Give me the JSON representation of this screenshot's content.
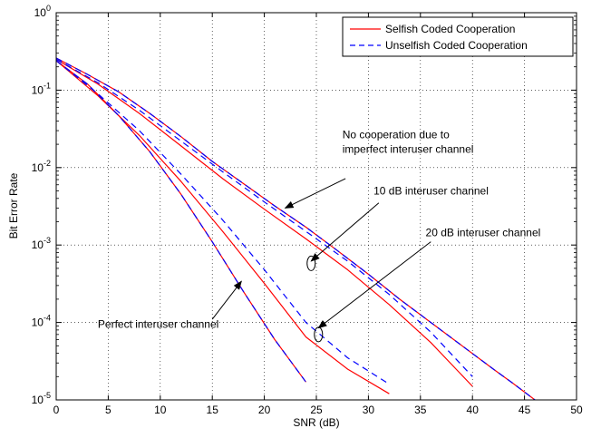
{
  "chart_data": {
    "type": "line",
    "title": "",
    "xlabel": "SNR (dB)",
    "ylabel": "Bit Error Rate",
    "xlim": [
      0,
      50
    ],
    "ylim": [
      1e-05,
      1
    ],
    "yscale": "log",
    "grid": true,
    "legend_position": "top-right",
    "x_ticks": [
      "0",
      "5",
      "10",
      "15",
      "20",
      "25",
      "30",
      "35",
      "40",
      "45",
      "50"
    ],
    "y_ticks": [
      {
        "base": "10",
        "exp": "0"
      },
      {
        "base": "10",
        "exp": "-1"
      },
      {
        "base": "10",
        "exp": "-2"
      },
      {
        "base": "10",
        "exp": "-3"
      },
      {
        "base": "10",
        "exp": "-4"
      },
      {
        "base": "10",
        "exp": "-5"
      }
    ],
    "legend": [
      {
        "label": "Selfish Coded Cooperation",
        "color": "#ff0000",
        "dash": "solid"
      },
      {
        "label": "Unselfish Coded Cooperation",
        "color": "#0000ff",
        "dash": "dashed"
      }
    ],
    "series": [
      {
        "name": "Selfish Coded Cooperation",
        "group": "No cooperation",
        "color": "#ff0000",
        "dash": "solid",
        "x": [
          0,
          3,
          6,
          9,
          12,
          15,
          18,
          21,
          24,
          27,
          30,
          33,
          36,
          39,
          42,
          44,
          46
        ],
        "y": [
          0.26,
          0.16,
          0.095,
          0.05,
          0.025,
          0.012,
          0.0062,
          0.0032,
          0.0017,
          0.00085,
          0.00042,
          0.0002,
          0.0001,
          5e-05,
          2.5e-05,
          1.6e-05,
          1e-05
        ]
      },
      {
        "name": "Unselfish Coded Cooperation",
        "group": "No cooperation",
        "color": "#0000ff",
        "dash": "dashed",
        "x": [
          0,
          3,
          6,
          9,
          12,
          15,
          18,
          21,
          24,
          27,
          30,
          33,
          36,
          39,
          42,
          44,
          46
        ],
        "y": [
          0.26,
          0.16,
          0.095,
          0.05,
          0.025,
          0.012,
          0.0062,
          0.0032,
          0.0017,
          0.00085,
          0.00042,
          0.0002,
          0.0001,
          5e-05,
          2.5e-05,
          1.6e-05,
          1e-05
        ]
      },
      {
        "name": "Selfish Coded Cooperation",
        "group": "10 dB interuser channel",
        "color": "#ff0000",
        "dash": "solid",
        "x": [
          0,
          4,
          8,
          12,
          16,
          20,
          24,
          28,
          32,
          36,
          40
        ],
        "y": [
          0.25,
          0.12,
          0.05,
          0.019,
          0.0072,
          0.0029,
          0.0012,
          0.00048,
          0.00017,
          5.5e-05,
          1.5e-05
        ]
      },
      {
        "name": "Unselfish Coded Cooperation",
        "group": "10 dB interuser channel",
        "color": "#0000ff",
        "dash": "dashed",
        "x": [
          0,
          4,
          8,
          12,
          16,
          20,
          24,
          28,
          32,
          36,
          40
        ],
        "y": [
          0.25,
          0.125,
          0.055,
          0.022,
          0.0088,
          0.0036,
          0.0015,
          0.00062,
          0.00023,
          7.5e-05,
          2e-05
        ]
      },
      {
        "name": "Selfish Coded Cooperation",
        "group": "20 dB interuser channel",
        "color": "#ff0000",
        "dash": "solid",
        "x": [
          0,
          4,
          8,
          12,
          16,
          20,
          24,
          28,
          32
        ],
        "y": [
          0.24,
          0.085,
          0.026,
          0.0066,
          0.0015,
          0.00032,
          6.5e-05,
          2.5e-05,
          1.2e-05
        ]
      },
      {
        "name": "Unselfish Coded Cooperation",
        "group": "20 dB interuser channel",
        "color": "#0000ff",
        "dash": "dashed",
        "x": [
          0,
          4,
          8,
          12,
          16,
          20,
          24,
          28,
          32
        ],
        "y": [
          0.24,
          0.09,
          0.03,
          0.0082,
          0.0021,
          0.00048,
          0.0001,
          3.5e-05,
          1.6e-05
        ]
      },
      {
        "name": "Selfish Coded Cooperation",
        "group": "Perfect interuser channel",
        "color": "#ff0000",
        "dash": "solid",
        "x": [
          0,
          3,
          6,
          9,
          12,
          15,
          18,
          21,
          24
        ],
        "y": [
          0.24,
          0.12,
          0.047,
          0.016,
          0.0045,
          0.0011,
          0.00025,
          6e-05,
          1.7e-05
        ]
      },
      {
        "name": "Unselfish Coded Cooperation",
        "group": "Perfect interuser channel",
        "color": "#0000ff",
        "dash": "dashed",
        "x": [
          0,
          3,
          6,
          9,
          12,
          15,
          18,
          21,
          24
        ],
        "y": [
          0.24,
          0.12,
          0.047,
          0.016,
          0.0045,
          0.0011,
          0.00025,
          6e-05,
          1.7e-05
        ]
      }
    ],
    "annotations": [
      {
        "lines": [
          "No cooperation due to",
          "imperfect interuser channel"
        ],
        "text_x": 27.5,
        "text_y": 0.024,
        "arrow_from": [
          27.8,
          0.0072
        ],
        "arrow_to": [
          22,
          0.003
        ],
        "ellipse": null
      },
      {
        "lines": [
          "10 dB interuser channel"
        ],
        "text_x": 30.5,
        "text_y": 0.0045,
        "arrow_from": [
          31,
          0.0035
        ],
        "arrow_to": [
          24.5,
          0.00062
        ],
        "ellipse": [
          24.5,
          0.00058
        ]
      },
      {
        "lines": [
          "20 dB interuser channel"
        ],
        "text_x": 35.5,
        "text_y": 0.0013,
        "arrow_from": [
          36,
          0.0011
        ],
        "arrow_to": [
          25.2,
          8.5e-05
        ],
        "ellipse": [
          25.2,
          7e-05
        ]
      },
      {
        "lines": [
          "Perfect interuser channel"
        ],
        "text_x": 4,
        "text_y": 8.5e-05,
        "arrow_from": [
          15,
          0.00011
        ],
        "arrow_to": [
          17.8,
          0.00034
        ],
        "ellipse": null
      }
    ]
  }
}
